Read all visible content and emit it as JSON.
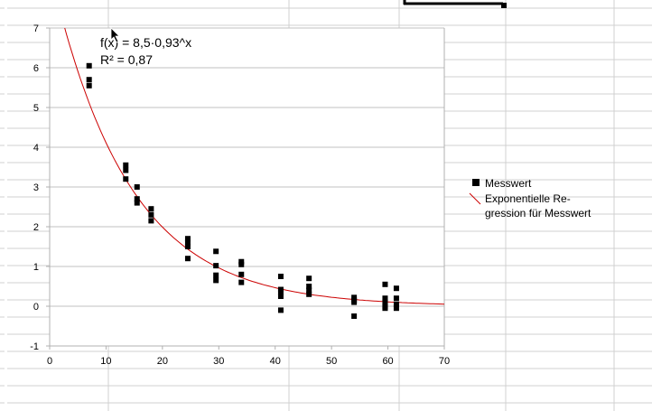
{
  "colors": {
    "marker": "#000000",
    "trendline": "#cc0000",
    "gridline": "#c0c0c0",
    "sheet_grid": "#d0d0d0"
  },
  "chart_data": {
    "type": "scatter",
    "title": "",
    "xlabel": "",
    "ylabel": "",
    "xlim": [
      0,
      70
    ],
    "ylim": [
      -1,
      7
    ],
    "x_ticks": [
      0,
      10,
      20,
      30,
      40,
      50,
      60,
      70
    ],
    "y_ticks": [
      -1,
      0,
      1,
      2,
      3,
      4,
      5,
      6,
      7
    ],
    "grid": "horizontal",
    "legend_position": "right",
    "series": [
      {
        "name": "Messwert",
        "marker": "square",
        "points": [
          [
            7,
            6.05
          ],
          [
            7,
            5.7
          ],
          [
            7,
            5.55
          ],
          [
            13.5,
            3.55
          ],
          [
            13.5,
            3.42
          ],
          [
            13.5,
            3.2
          ],
          [
            15.5,
            3.0
          ],
          [
            15.5,
            2.7
          ],
          [
            15.5,
            2.6
          ],
          [
            18,
            2.45
          ],
          [
            18,
            2.3
          ],
          [
            18,
            2.15
          ],
          [
            24.5,
            1.7
          ],
          [
            24.5,
            1.6
          ],
          [
            24.5,
            1.5
          ],
          [
            24.5,
            1.2
          ],
          [
            29.5,
            1.38
          ],
          [
            29.5,
            1.02
          ],
          [
            29.5,
            0.78
          ],
          [
            29.5,
            0.65
          ],
          [
            34,
            1.12
          ],
          [
            34,
            1.05
          ],
          [
            34,
            0.8
          ],
          [
            34,
            0.6
          ],
          [
            41,
            0.75
          ],
          [
            41,
            0.42
          ],
          [
            41,
            0.35
          ],
          [
            41,
            0.25
          ],
          [
            41,
            -0.1
          ],
          [
            46,
            0.7
          ],
          [
            46,
            0.5
          ],
          [
            46,
            0.4
          ],
          [
            46,
            0.3
          ],
          [
            54,
            0.22
          ],
          [
            54,
            0.15
          ],
          [
            54,
            0.1
          ],
          [
            54,
            -0.25
          ],
          [
            59.5,
            0.55
          ],
          [
            59.5,
            0.2
          ],
          [
            59.5,
            0.1
          ],
          [
            59.5,
            0.0
          ],
          [
            59.5,
            -0.05
          ],
          [
            61.5,
            0.45
          ],
          [
            61.5,
            0.2
          ],
          [
            61.5,
            0.05
          ],
          [
            61.5,
            -0.05
          ]
        ]
      },
      {
        "name_lines": [
          "Exponentielle Re-",
          "gression für Messwert"
        ],
        "type": "trendline",
        "model": "exponential",
        "a": 8.5,
        "b": 0.93
      }
    ],
    "annotations": {
      "equation": "f(x) = 8,5·0,93^x",
      "r_squared": "R² = 0,87"
    }
  }
}
